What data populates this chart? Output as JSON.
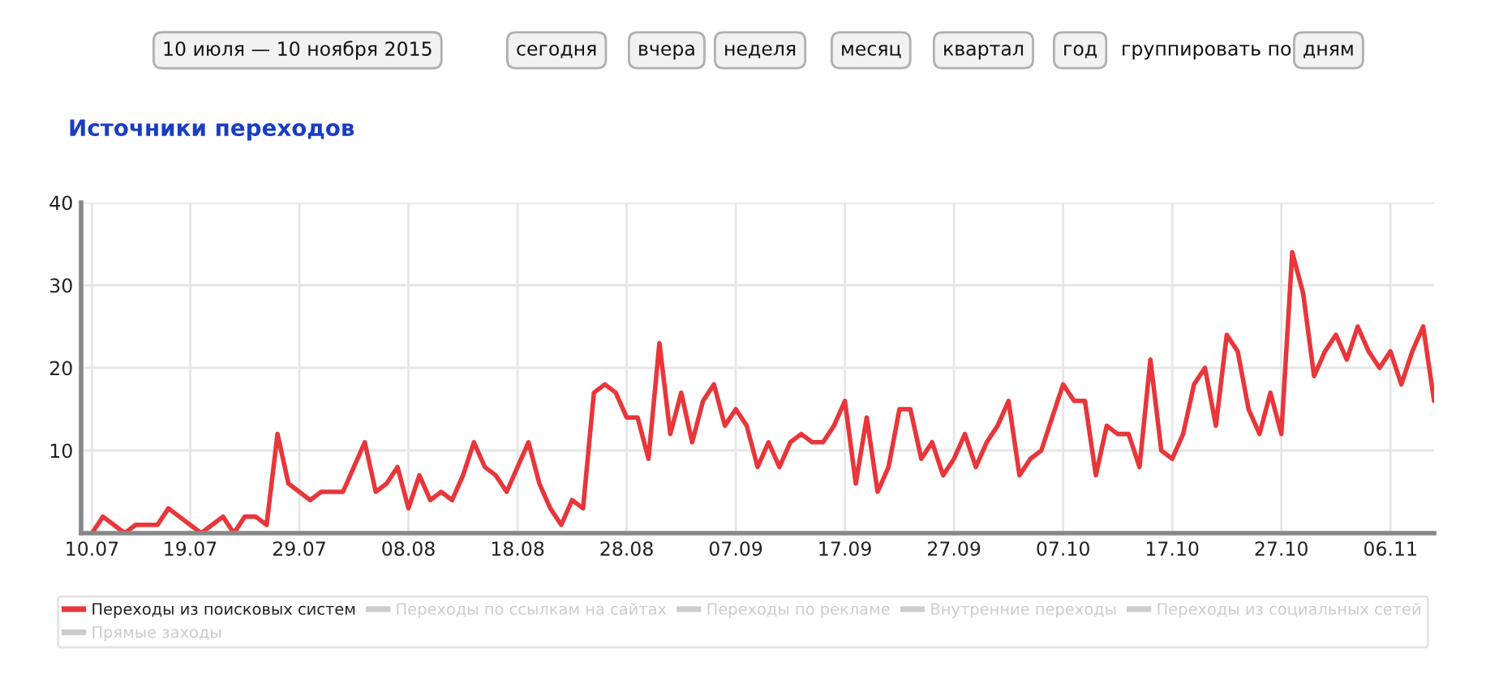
{
  "chart_data": {
    "type": "line",
    "title": "Источники переходов",
    "annotations": [
      "10 июля — 10 ноября 2015",
      "сегодня",
      "вчера",
      "неделя",
      "месяц",
      "квартал",
      "год",
      "группировать по",
      "дням"
    ],
    "x": [
      "2015-07-10",
      "2015-07-11",
      "2015-07-12",
      "2015-07-13",
      "2015-07-14",
      "2015-07-15",
      "2015-07-16",
      "2015-07-17",
      "2015-07-18",
      "2015-07-19",
      "2015-07-20",
      "2015-07-21",
      "2015-07-22",
      "2015-07-23",
      "2015-07-24",
      "2015-07-25",
      "2015-07-26",
      "2015-07-27",
      "2015-07-28",
      "2015-07-29",
      "2015-07-30",
      "2015-07-31",
      "2015-08-01",
      "2015-08-02",
      "2015-08-03",
      "2015-08-04",
      "2015-08-05",
      "2015-08-06",
      "2015-08-07",
      "2015-08-08",
      "2015-08-09",
      "2015-08-10",
      "2015-08-11",
      "2015-08-12",
      "2015-08-13",
      "2015-08-14",
      "2015-08-15",
      "2015-08-16",
      "2015-08-17",
      "2015-08-18",
      "2015-08-19",
      "2015-08-20",
      "2015-08-21",
      "2015-08-22",
      "2015-08-23",
      "2015-08-24",
      "2015-08-25",
      "2015-08-26",
      "2015-08-27",
      "2015-08-28",
      "2015-08-29",
      "2015-08-30",
      "2015-08-31",
      "2015-09-01",
      "2015-09-02",
      "2015-09-03",
      "2015-09-04",
      "2015-09-05",
      "2015-09-06",
      "2015-09-07",
      "2015-09-08",
      "2015-09-09",
      "2015-09-10",
      "2015-09-11",
      "2015-09-12",
      "2015-09-13",
      "2015-09-14",
      "2015-09-15",
      "2015-09-16",
      "2015-09-17",
      "2015-09-18",
      "2015-09-19",
      "2015-09-20",
      "2015-09-21",
      "2015-09-22",
      "2015-09-23",
      "2015-09-24",
      "2015-09-25",
      "2015-09-26",
      "2015-09-27",
      "2015-09-28",
      "2015-09-29",
      "2015-09-30",
      "2015-10-01",
      "2015-10-02",
      "2015-10-03",
      "2015-10-04",
      "2015-10-05",
      "2015-10-06",
      "2015-10-07",
      "2015-10-08",
      "2015-10-09",
      "2015-10-10",
      "2015-10-11",
      "2015-10-12",
      "2015-10-13",
      "2015-10-14",
      "2015-10-15",
      "2015-10-16",
      "2015-10-17",
      "2015-10-18",
      "2015-10-19",
      "2015-10-20",
      "2015-10-21",
      "2015-10-22",
      "2015-10-23",
      "2015-10-24",
      "2015-10-25",
      "2015-10-26",
      "2015-10-27",
      "2015-10-28",
      "2015-10-29",
      "2015-10-30",
      "2015-10-31",
      "2015-11-01",
      "2015-11-02",
      "2015-11-03",
      "2015-11-04",
      "2015-11-05",
      "2015-11-06",
      "2015-11-07",
      "2015-11-08",
      "2015-11-09",
      "2015-11-10"
    ],
    "series": [
      {
        "name": "Переходы из поисковых систем",
        "color": "#e8363a",
        "values": [
          0,
          2,
          1,
          0,
          1,
          1,
          1,
          3,
          2,
          1,
          0,
          1,
          2,
          0,
          2,
          2,
          1,
          12,
          6,
          5,
          4,
          5,
          5,
          5,
          8,
          11,
          5,
          6,
          8,
          3,
          7,
          4,
          5,
          4,
          7,
          11,
          8,
          7,
          5,
          8,
          11,
          6,
          3,
          1,
          4,
          3,
          17,
          18,
          17,
          14,
          14,
          9,
          23,
          12,
          17,
          11,
          16,
          18,
          13,
          15,
          13,
          8,
          11,
          8,
          11,
          12,
          11,
          11,
          13,
          16,
          6,
          14,
          5,
          8,
          15,
          15,
          9,
          11,
          7,
          9,
          12,
          8,
          11,
          13,
          16,
          7,
          9,
          10,
          14,
          18,
          16,
          16,
          7,
          13,
          12,
          12,
          8,
          21,
          10,
          9,
          12,
          18,
          20,
          13,
          24,
          22,
          15,
          12,
          17,
          12,
          34,
          29,
          19,
          22,
          24,
          21,
          25,
          22,
          20,
          22,
          18,
          22,
          25,
          16
        ]
      },
      {
        "name": "Прямые заходы",
        "color": "#cccccc",
        "values": [
          null,
          null,
          null,
          null,
          null,
          null,
          null,
          null,
          null,
          null,
          null,
          null,
          null,
          null,
          null,
          null,
          null,
          null,
          null,
          null,
          null,
          null,
          null,
          null,
          null,
          null,
          null,
          null,
          null,
          null,
          null,
          null,
          null,
          null,
          null,
          null,
          null,
          null,
          null,
          null,
          null,
          null,
          null,
          null,
          null,
          null,
          null,
          null,
          null,
          null,
          null,
          null,
          null,
          null,
          null,
          null,
          null,
          null,
          null,
          null,
          null,
          null,
          null,
          null,
          null,
          null,
          null,
          null,
          null,
          null,
          null,
          null,
          null,
          null,
          null,
          null,
          null,
          null,
          null,
          null,
          null,
          null,
          null,
          null,
          null,
          null,
          null,
          null,
          null,
          null,
          null,
          null,
          null,
          null,
          null,
          null,
          null,
          null,
          null,
          null,
          null,
          null,
          null,
          null,
          null,
          null,
          null,
          null,
          null,
          null,
          null,
          null,
          null,
          null,
          null,
          null,
          null,
          null,
          null,
          null,
          null,
          null,
          null,
          null
        ]
      },
      {
        "name": "Переходы по ссылкам на сайтах",
        "color": "#cccccc",
        "values": [
          null,
          null,
          null,
          null,
          null,
          null,
          null,
          null,
          null,
          null,
          null,
          null,
          null,
          null,
          null,
          null,
          null,
          null,
          null,
          null,
          null,
          null,
          null,
          null,
          null,
          null,
          null,
          null,
          null,
          null,
          null,
          null,
          null,
          null,
          null,
          null,
          null,
          null,
          null,
          null,
          null,
          null,
          null,
          null,
          null,
          null,
          null,
          null,
          null,
          null,
          null,
          null,
          null,
          null,
          null,
          null,
          null,
          null,
          null,
          null,
          null,
          null,
          null,
          null,
          null,
          null,
          null,
          null,
          null,
          null,
          null,
          null,
          null,
          null,
          null,
          null,
          null,
          null,
          null,
          null,
          null,
          null,
          null,
          null,
          null,
          null,
          null,
          null,
          null,
          null,
          null,
          null,
          null,
          null,
          null,
          null,
          null,
          null,
          null,
          null,
          null,
          null,
          null,
          null,
          null,
          null,
          null,
          null,
          null,
          null,
          null,
          null,
          null,
          null,
          null,
          null,
          null,
          null,
          null,
          null,
          null,
          null,
          null,
          null
        ]
      },
      {
        "name": "Переходы по рекламе",
        "color": "#cccccc",
        "values": [
          null,
          null,
          null,
          null,
          null,
          null,
          null,
          null,
          null,
          null,
          null,
          null,
          null,
          null,
          null,
          null,
          null,
          null,
          null,
          null,
          null,
          null,
          null,
          null,
          null,
          null,
          null,
          null,
          null,
          null,
          null,
          null,
          null,
          null,
          null,
          null,
          null,
          null,
          null,
          null,
          null,
          null,
          null,
          null,
          null,
          null,
          null,
          null,
          null,
          null,
          null,
          null,
          null,
          null,
          null,
          null,
          null,
          null,
          null,
          null,
          null,
          null,
          null,
          null,
          null,
          null,
          null,
          null,
          null,
          null,
          null,
          null,
          null,
          null,
          null,
          null,
          null,
          null,
          null,
          null,
          null,
          null,
          null,
          null,
          null,
          null,
          null,
          null,
          null,
          null,
          null,
          null,
          null,
          null,
          null,
          null,
          null,
          null,
          null,
          null,
          null,
          null,
          null,
          null,
          null,
          null,
          null,
          null,
          null,
          null,
          null,
          null,
          null,
          null,
          null,
          null,
          null,
          null,
          null,
          null,
          null,
          null,
          null,
          null
        ]
      },
      {
        "name": "Внутренние переходы",
        "color": "#cccccc",
        "values": [
          null,
          null,
          null,
          null,
          null,
          null,
          null,
          null,
          null,
          null,
          null,
          null,
          null,
          null,
          null,
          null,
          null,
          null,
          null,
          null,
          null,
          null,
          null,
          null,
          null,
          null,
          null,
          null,
          null,
          null,
          null,
          null,
          null,
          null,
          null,
          null,
          null,
          null,
          null,
          null,
          null,
          null,
          null,
          null,
          null,
          null,
          null,
          null,
          null,
          null,
          null,
          null,
          null,
          null,
          null,
          null,
          null,
          null,
          null,
          null,
          null,
          null,
          null,
          null,
          null,
          null,
          null,
          null,
          null,
          null,
          null,
          null,
          null,
          null,
          null,
          null,
          null,
          null,
          null,
          null,
          null,
          null,
          null,
          null,
          null,
          null,
          null,
          null,
          null,
          null,
          null,
          null,
          null,
          null,
          null,
          null,
          null,
          null,
          null,
          null,
          null,
          null,
          null,
          null,
          null,
          null,
          null,
          null,
          null,
          null,
          null,
          null,
          null,
          null,
          null,
          null,
          null,
          null,
          null,
          null,
          null,
          null,
          null,
          null
        ]
      },
      {
        "name": "Переходы из социальных сетей",
        "color": "#cccccc",
        "values": [
          null,
          null,
          null,
          null,
          null,
          null,
          null,
          null,
          null,
          null,
          null,
          null,
          null,
          null,
          null,
          null,
          null,
          null,
          null,
          null,
          null,
          null,
          null,
          null,
          null,
          null,
          null,
          null,
          null,
          null,
          null,
          null,
          null,
          null,
          null,
          null,
          null,
          null,
          null,
          null,
          null,
          null,
          null,
          null,
          null,
          null,
          null,
          null,
          null,
          null,
          null,
          null,
          null,
          null,
          null,
          null,
          null,
          null,
          null,
          null,
          null,
          null,
          null,
          null,
          null,
          null,
          null,
          null,
          null,
          null,
          null,
          null,
          null,
          null,
          null,
          null,
          null,
          null,
          null,
          null,
          null,
          null,
          null,
          null,
          null,
          null,
          null,
          null,
          null,
          null,
          null,
          null,
          null,
          null,
          null,
          null,
          null,
          null,
          null,
          null,
          null,
          null,
          null,
          null,
          null,
          null,
          null,
          null,
          null,
          null,
          null,
          null,
          null,
          null,
          null,
          null,
          null,
          null,
          null,
          null,
          null,
          null,
          null,
          null
        ]
      }
    ],
    "xlim": [
      "2015-07-09",
      "2015-11-10"
    ],
    "xticks": [
      {
        "value": "2015-07-10",
        "label": "10.07"
      },
      {
        "value": "2015-07-19",
        "label": "19.07"
      },
      {
        "value": "2015-07-29",
        "label": "29.07"
      },
      {
        "value": "2015-08-08",
        "label": "08.08"
      },
      {
        "value": "2015-08-18",
        "label": "18.08"
      },
      {
        "value": "2015-08-28",
        "label": "28.08"
      },
      {
        "value": "2015-09-07",
        "label": "07.09"
      },
      {
        "value": "2015-09-17",
        "label": "17.09"
      },
      {
        "value": "2015-09-27",
        "label": "27.09"
      },
      {
        "value": "2015-10-07",
        "label": "07.10"
      },
      {
        "value": "2015-10-17",
        "label": "17.10"
      },
      {
        "value": "2015-10-27",
        "label": "27.10"
      },
      {
        "value": "2015-11-06",
        "label": "06.11"
      }
    ],
    "ylim": [
      0,
      40
    ],
    "yticks": [
      10,
      20,
      30,
      40
    ],
    "grid": true,
    "legend": "bottom",
    "marker": "none",
    "line_style": "solid"
  }
}
